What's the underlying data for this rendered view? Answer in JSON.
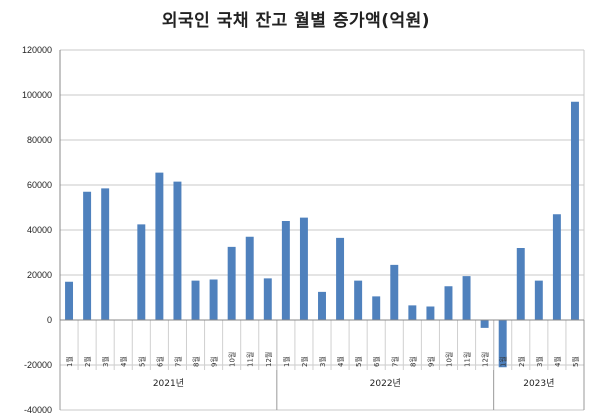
{
  "chart_data": {
    "type": "bar",
    "title": "외국인 국채 잔고 월별 증가액(억원)",
    "ylim": [
      -40000,
      120000
    ],
    "yticks": [
      "120000",
      "100000",
      "80000",
      "60000",
      "40000",
      "20000",
      "0",
      "-20000",
      "-40000"
    ],
    "grid": true,
    "legend": "none",
    "bar_color": "#4f81bd",
    "groups": [
      {
        "label": "2021년",
        "months": [
          "1월",
          "2월",
          "3월",
          "4월",
          "5월",
          "6월",
          "7월",
          "8월",
          "9월",
          "10월",
          "11월",
          "12월"
        ],
        "values": [
          17000,
          57000,
          58500,
          0,
          42500,
          65500,
          61500,
          17500,
          18000,
          32500,
          37000,
          18500
        ]
      },
      {
        "label": "2022년",
        "months": [
          "1월",
          "2월",
          "3월",
          "4월",
          "5월",
          "6월",
          "7월",
          "8월",
          "9월",
          "10월",
          "11월",
          "12월"
        ],
        "values": [
          44000,
          45500,
          12500,
          36500,
          17500,
          10500,
          24500,
          6500,
          6000,
          15000,
          19500,
          -3500
        ]
      },
      {
        "label": "2023년",
        "months": [
          "1월",
          "2월",
          "3월",
          "4월",
          "5월"
        ],
        "values": [
          -21000,
          32000,
          17500,
          47000,
          97000
        ]
      }
    ]
  }
}
